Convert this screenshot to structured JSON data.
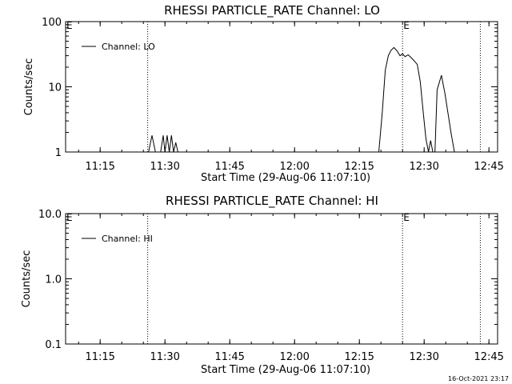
{
  "chart_data": [
    {
      "type": "line",
      "title": "RHESSI PARTICLE_RATE Channel: LO",
      "xlabel": "Start Time (29-Aug-06 11:07:10)",
      "ylabel": "Counts/sec",
      "y_scale": "log",
      "ylim": [
        1,
        100
      ],
      "xlim": [
        "11:07",
        "12:47"
      ],
      "x_ticks": [
        "11:15",
        "11:30",
        "11:45",
        "12:00",
        "12:15",
        "12:30",
        "12:45"
      ],
      "y_ticks": [
        "1",
        "10",
        "100"
      ],
      "legend": {
        "label": "Channel: LO",
        "placement": "top-left"
      },
      "markers": [
        {
          "x": "11:26",
          "label": ""
        },
        {
          "x": "12:25",
          "label": "E"
        },
        {
          "x": "12:43",
          "label": ""
        }
      ],
      "edge_label": "E",
      "series": [
        {
          "name": "Channel: LO",
          "x": [
            "11:25.5",
            "11:26.2",
            "11:27.0",
            "11:27.8",
            "11:28.5",
            "11:29.0",
            "11:29.6",
            "11:30.0",
            "11:30.5",
            "11:31.0",
            "11:31.5",
            "11:32.0",
            "11:32.5",
            "11:33.0",
            "11:33.5",
            "12:19.5",
            "12:20.3",
            "12:21.0",
            "12:21.7",
            "12:22.3",
            "12:23.0",
            "12:23.8",
            "12:24.4",
            "12:25.0",
            "12:25.6",
            "12:26.3",
            "12:27.0",
            "12:27.7",
            "12:28.4",
            "12:29.1",
            "12:29.8",
            "12:30.4",
            "12:31.0",
            "12:31.5",
            "12:32.0",
            "12:32.5",
            "12:33.0",
            "12:34.0",
            "12:34.8",
            "12:35.5",
            "12:36.2",
            "12:37.0",
            "12:37.5"
          ],
          "values": [
            1.0,
            1.0,
            1.8,
            1.0,
            1.0,
            1.0,
            1.8,
            1.0,
            1.8,
            1.0,
            1.8,
            1.0,
            1.4,
            1.0,
            1.0,
            1.0,
            4.0,
            18,
            30,
            36,
            40,
            35,
            30,
            32,
            29,
            31,
            28,
            25,
            22,
            12,
            4,
            1.6,
            1.0,
            1.5,
            1.0,
            1.0,
            9,
            15,
            8,
            4,
            2,
            1.0,
            1.0
          ]
        }
      ]
    },
    {
      "type": "line",
      "title": "RHESSI PARTICLE_RATE Channel: HI",
      "xlabel": "Start Time (29-Aug-06 11:07:10)",
      "ylabel": "Counts/sec",
      "y_scale": "log",
      "ylim": [
        0.1,
        10
      ],
      "xlim": [
        "11:07",
        "12:47"
      ],
      "x_ticks": [
        "11:15",
        "11:30",
        "11:45",
        "12:00",
        "12:15",
        "12:30",
        "12:45"
      ],
      "y_ticks": [
        "0.1",
        "1.0",
        "10.0"
      ],
      "legend": {
        "label": "Channel: HI",
        "placement": "top-left"
      },
      "markers": [
        {
          "x": "11:26",
          "label": ""
        },
        {
          "x": "12:25",
          "label": "E"
        },
        {
          "x": "12:43",
          "label": ""
        }
      ],
      "edge_label": "E",
      "series": [
        {
          "name": "Channel: HI",
          "x": [],
          "values": []
        }
      ]
    }
  ],
  "footer": {
    "date_stamp": "16-Oct-2021 23:17"
  }
}
